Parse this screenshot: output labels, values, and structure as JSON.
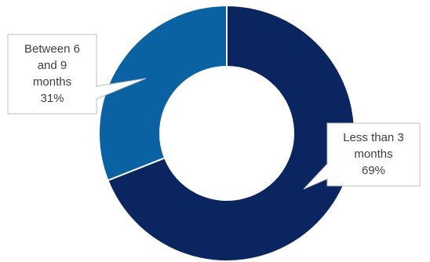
{
  "colors": {
    "dark_navy": "#0b2560",
    "medium_blue": "#0a62a3",
    "callout_border": "#bfbfbf",
    "callout_text": "#404040"
  },
  "chart_data": {
    "type": "pie",
    "variant": "donut",
    "title": "",
    "categories": [
      "Less than 3 months",
      "Between 6 and 9 months"
    ],
    "values": [
      69,
      31
    ],
    "colors": [
      "#0b2560",
      "#0a62a3"
    ],
    "data_labels": [
      {
        "lines": [
          "Less than 3",
          "months",
          "69%"
        ]
      },
      {
        "lines": [
          "Between 6",
          "and 9",
          "months",
          "31%"
        ]
      }
    ],
    "legend": "none"
  }
}
